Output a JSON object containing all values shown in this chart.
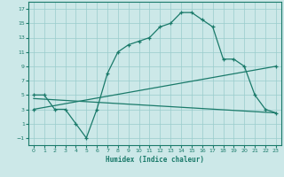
{
  "xlabel": "Humidex (Indice chaleur)",
  "background_color": "#cce8e8",
  "grid_color": "#99cccc",
  "line_color": "#1a7a6a",
  "xlim": [
    -0.5,
    23.5
  ],
  "ylim": [
    -2,
    18
  ],
  "xticks": [
    0,
    1,
    2,
    3,
    4,
    5,
    6,
    7,
    8,
    9,
    10,
    11,
    12,
    13,
    14,
    15,
    16,
    17,
    18,
    19,
    20,
    21,
    22,
    23
  ],
  "yticks": [
    -1,
    1,
    3,
    5,
    7,
    9,
    11,
    13,
    15,
    17
  ],
  "line1_x": [
    0,
    1,
    2,
    3,
    4,
    5,
    6,
    7,
    8,
    9,
    10,
    11,
    12,
    13,
    14,
    15,
    16,
    17,
    18,
    19,
    20,
    21,
    22,
    23
  ],
  "line1_y": [
    5,
    5,
    3,
    3,
    1,
    -1,
    3,
    8,
    11,
    12,
    12.5,
    13,
    14.5,
    15,
    16.5,
    16.5,
    15.5,
    14.5,
    10,
    10,
    9,
    5,
    3,
    2.5
  ],
  "line2_x": [
    0,
    23
  ],
  "line2_y": [
    4.5,
    2.5
  ],
  "line3_x": [
    0,
    23
  ],
  "line3_y": [
    3.0,
    9.0
  ]
}
